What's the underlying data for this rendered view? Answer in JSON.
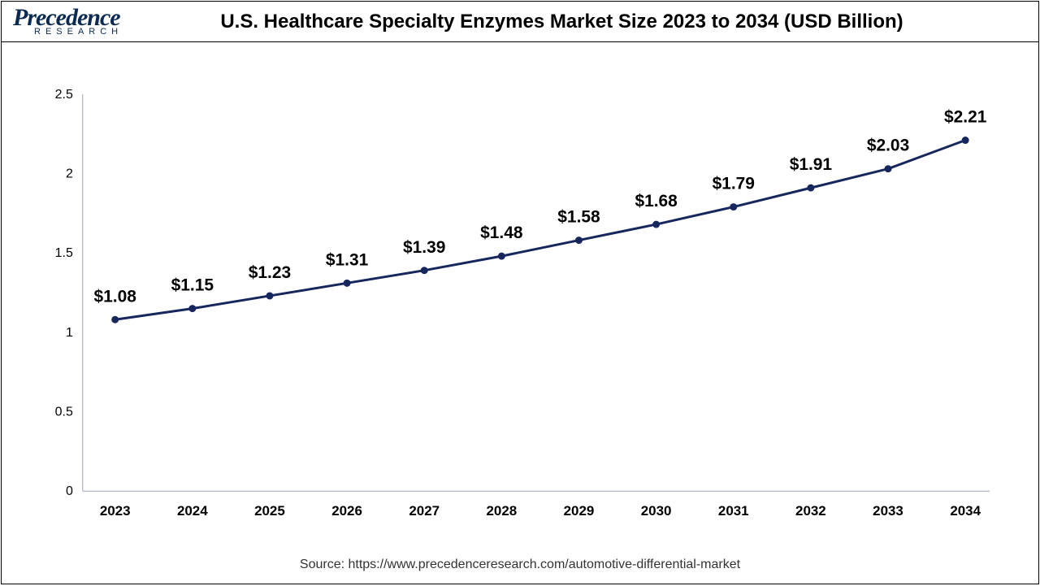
{
  "header": {
    "logo_main": "Precedence",
    "logo_sub": "RESEARCH",
    "title": "U.S. Healthcare Specialty Enzymes Market Size 2023 to 2034 (USD Billion)"
  },
  "chart": {
    "type": "line",
    "categories": [
      "2023",
      "2024",
      "2025",
      "2026",
      "2027",
      "2028",
      "2029",
      "2030",
      "2031",
      "2032",
      "2033",
      "2034"
    ],
    "values": [
      1.08,
      1.15,
      1.23,
      1.31,
      1.39,
      1.48,
      1.58,
      1.68,
      1.79,
      1.91,
      2.03,
      2.21
    ],
    "value_labels": [
      "$1.08",
      "$1.15",
      "$1.23",
      "$1.31",
      "$1.39",
      "$1.48",
      "$1.58",
      "$1.68",
      "$1.79",
      "$1.91",
      "$2.03",
      "$2.21"
    ],
    "ylim": [
      0,
      2.5
    ],
    "ytick_step": 0.5,
    "yticks": [
      "0",
      "0.5",
      "1",
      "1.5",
      "2",
      "2.5"
    ],
    "line_color": "#17275e",
    "marker_color": "#17275e",
    "line_width": 3,
    "marker_radius": 4.5,
    "axis_color": "#9ca3af",
    "background_color": "#ffffff",
    "xlabel_fontsize": 17,
    "xlabel_fontweight": "700",
    "ylabel_fontsize": 16,
    "datalabel_fontsize": 21,
    "datalabel_fontweight": "700",
    "label_color": "#000000"
  },
  "footer": {
    "source": "Source: https://www.precedenceresearch.com/automotive-differential-market"
  }
}
